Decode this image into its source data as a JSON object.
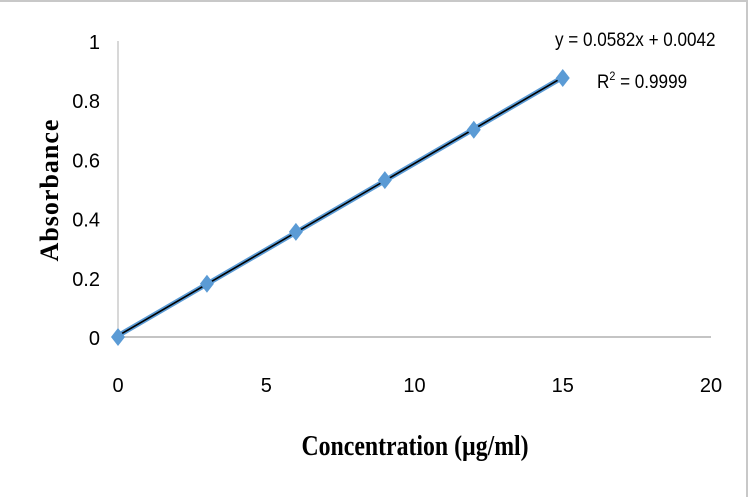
{
  "chart_data": {
    "type": "scatter",
    "title": "",
    "xlabel": "Concentration (µg/ml)",
    "ylabel": "Absorbance",
    "xlim": [
      0,
      20
    ],
    "ylim": [
      0,
      1
    ],
    "xticks": [
      "0",
      "5",
      "10",
      "15",
      "20"
    ],
    "yticks": [
      "0",
      "0.2",
      "0.4",
      "0.6",
      "0.8",
      "1"
    ],
    "grid": false,
    "series": [
      {
        "x": [
          0,
          3,
          6,
          9,
          12,
          15
        ],
        "y": [
          0,
          0.18,
          0.355,
          0.53,
          0.7,
          0.875
        ],
        "marker": "diamond",
        "color": "#5b9bd5"
      }
    ],
    "trendline": {
      "type": "linear",
      "slope": 0.0582,
      "intercept": 0.0042,
      "color": "#000000",
      "equation": "y = 0.0582x + 0.0042",
      "r2_label": "R",
      "r2_sup": "2",
      "r2_value": " = 0.9999"
    }
  }
}
